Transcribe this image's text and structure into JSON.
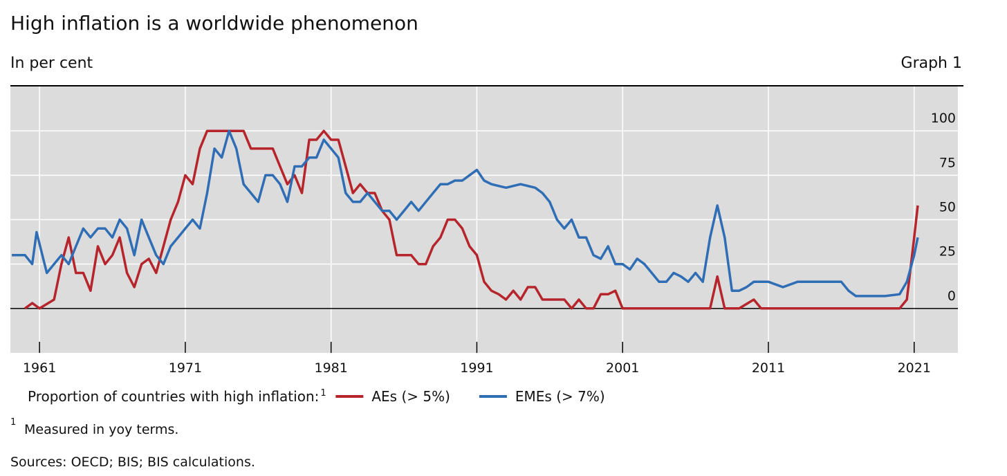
{
  "chart_data": {
    "type": "line",
    "title": "High inflation is a worldwide phenomenon",
    "subtitle": "In per cent",
    "graph_label": "Graph 1",
    "legend_title": "Proportion of countries with high inflation:",
    "legend_title_note": "1",
    "footnote": {
      "marker": "1",
      "text": "Measured in yoy terms."
    },
    "sources": "Sources: OECD; BIS; BIS calculations.",
    "xlim": [
      1959,
      2024
    ],
    "xticks": [
      1961,
      1971,
      1981,
      1991,
      2001,
      2011,
      2021
    ],
    "ylim": [
      -25,
      125
    ],
    "yticks": [
      0,
      25,
      50,
      75,
      100
    ],
    "grid": true,
    "series": [
      {
        "name": "AEs (> 5%)",
        "color": "#b5252b",
        "x": [
          1960,
          1960.5,
          1961,
          1962,
          1962.5,
          1963,
          1963.5,
          1964,
          1964.5,
          1965,
          1965.5,
          1966,
          1966.5,
          1967,
          1967.5,
          1968,
          1968.5,
          1969,
          1969.5,
          1970,
          1970.5,
          1971,
          1971.5,
          1972,
          1972.5,
          1973,
          1974,
          1975,
          1975.5,
          1976,
          1977,
          1977.5,
          1978,
          1978.5,
          1979,
          1979.5,
          1980,
          1980.5,
          1981,
          1981.5,
          1982,
          1982.5,
          1983,
          1983.5,
          1984,
          1984.5,
          1985,
          1985.5,
          1986,
          1986.5,
          1987,
          1987.5,
          1988,
          1988.5,
          1989,
          1989.5,
          1990,
          1990.5,
          1991,
          1991.5,
          1992,
          1992.5,
          1993,
          1993.5,
          1994,
          1994.5,
          1995,
          1995.5,
          1996,
          1997,
          1997.5,
          1998,
          1998.5,
          1999,
          1999.5,
          2000,
          2000.5,
          2001,
          2002,
          2003,
          2004,
          2005,
          2006,
          2007,
          2007.5,
          2008,
          2009,
          2010,
          2010.5,
          2011,
          2012,
          2014,
          2016,
          2018,
          2020,
          2020.5,
          2021,
          2021.25
        ],
        "values": [
          0,
          3,
          0,
          5,
          25,
          40,
          20,
          20,
          10,
          35,
          25,
          30,
          40,
          20,
          12,
          25,
          28,
          20,
          35,
          50,
          60,
          75,
          70,
          90,
          100,
          100,
          100,
          100,
          90,
          90,
          90,
          80,
          70,
          75,
          65,
          95,
          95,
          100,
          95,
          95,
          80,
          65,
          70,
          65,
          65,
          55,
          50,
          30,
          30,
          30,
          25,
          25,
          35,
          40,
          50,
          50,
          45,
          35,
          30,
          15,
          10,
          8,
          5,
          10,
          5,
          12,
          12,
          5,
          5,
          5,
          0,
          5,
          0,
          0,
          8,
          8,
          10,
          0,
          0,
          0,
          0,
          0,
          0,
          0,
          18,
          0,
          0,
          5,
          0,
          0,
          0,
          0,
          0,
          0,
          0,
          5,
          40,
          58
        ]
      },
      {
        "name": "EMEs (> 7%)",
        "color": "#2f6db5",
        "x": [
          1959.1,
          1960,
          1960.5,
          1960.8,
          1961.5,
          1962,
          1962.5,
          1963,
          1963.5,
          1964,
          1964.5,
          1965,
          1965.5,
          1966,
          1966.5,
          1967,
          1967.5,
          1968,
          1968.5,
          1969,
          1969.5,
          1970,
          1970.5,
          1971,
          1971.5,
          1972,
          1972.5,
          1973,
          1973.5,
          1974,
          1974.5,
          1975,
          1975.5,
          1976,
          1976.5,
          1977,
          1977.5,
          1978,
          1978.5,
          1979,
          1979.5,
          1980,
          1980.5,
          1981,
          1981.5,
          1982,
          1982.5,
          1983,
          1983.5,
          1984,
          1984.5,
          1985,
          1985.5,
          1986,
          1986.5,
          1987,
          1987.5,
          1988,
          1988.5,
          1989,
          1989.5,
          1990,
          1990.5,
          1991,
          1991.5,
          1992,
          1993,
          1994,
          1995,
          1995.5,
          1996,
          1996.5,
          1997,
          1997.5,
          1998,
          1998.5,
          1999,
          1999.5,
          2000,
          2000.5,
          2001,
          2001.5,
          2002,
          2002.5,
          2003,
          2003.5,
          2004,
          2004.5,
          2005,
          2005.5,
          2006,
          2006.5,
          2007,
          2007.5,
          2008,
          2008.5,
          2009,
          2009.5,
          2010,
          2011,
          2012,
          2013,
          2014,
          2015,
          2016,
          2016.5,
          2017,
          2018,
          2019,
          2020,
          2020.5,
          2021,
          2021.25
        ],
        "values": [
          30,
          30,
          25,
          43,
          20,
          25,
          30,
          25,
          35,
          45,
          40,
          45,
          45,
          40,
          50,
          45,
          30,
          50,
          40,
          30,
          25,
          35,
          40,
          45,
          50,
          45,
          65,
          90,
          85,
          100,
          90,
          70,
          65,
          60,
          75,
          75,
          70,
          60,
          80,
          80,
          85,
          85,
          95,
          90,
          85,
          65,
          60,
          60,
          65,
          60,
          55,
          55,
          50,
          55,
          60,
          55,
          60,
          65,
          70,
          70,
          72,
          72,
          75,
          78,
          72,
          70,
          68,
          70,
          68,
          65,
          60,
          50,
          45,
          50,
          40,
          40,
          30,
          28,
          35,
          25,
          25,
          22,
          28,
          25,
          20,
          15,
          15,
          20,
          18,
          15,
          20,
          15,
          40,
          58,
          40,
          10,
          10,
          12,
          15,
          15,
          12,
          15,
          15,
          15,
          15,
          10,
          7,
          7,
          7,
          8,
          15,
          30,
          40
        ]
      }
    ]
  }
}
